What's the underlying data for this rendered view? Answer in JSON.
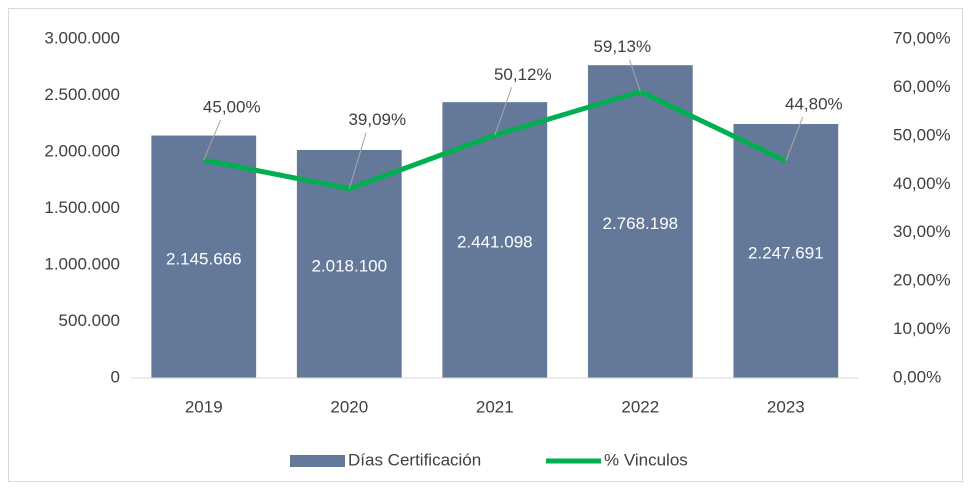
{
  "chart_data": {
    "type": "bar",
    "categories": [
      "2019",
      "2020",
      "2021",
      "2022",
      "2023"
    ],
    "series": [
      {
        "name": "Días Certificación",
        "color": "#64799a",
        "values": [
          2145666,
          2018100,
          2441098,
          2768198,
          2247691
        ],
        "value_labels": [
          "2.145.666",
          "2.018.100",
          "2.441.098",
          "2.768.198",
          "2.247.691"
        ]
      },
      {
        "name": "% Vinculos",
        "color": "#00b050",
        "axis": "y2",
        "values": [
          45.0,
          39.09,
          50.12,
          59.13,
          44.8
        ],
        "value_labels": [
          "45,00%",
          "39,09%",
          "50,12%",
          "59,13%",
          "44,80%"
        ]
      }
    ],
    "ylim": [
      0,
      3000000
    ],
    "yticks": [
      0,
      {
        "value": 500000,
        "label": "500.000"
      },
      {
        "value": 1000000,
        "label": "1.000.000"
      },
      {
        "value": 1500000,
        "label": "1.500.000"
      },
      {
        "value": 2000000,
        "label": "2.000.000"
      },
      {
        "value": 2500000,
        "label": "2.500.000"
      },
      {
        "value": 3000000,
        "label": "3.000.000"
      }
    ],
    "y2lim": [
      0,
      70
    ],
    "y2ticks": [
      {
        "value": 0,
        "label": "0,00%"
      },
      {
        "value": 10,
        "label": "10,00%"
      },
      {
        "value": 20,
        "label": "20,00%"
      },
      {
        "value": 30,
        "label": "30,00%"
      },
      {
        "value": 40,
        "label": "40,00%"
      },
      {
        "value": 50,
        "label": "50,00%"
      },
      {
        "value": 60,
        "label": "60,00%"
      },
      {
        "value": 70,
        "label": "70,00%"
      }
    ],
    "legend": "bottom"
  }
}
